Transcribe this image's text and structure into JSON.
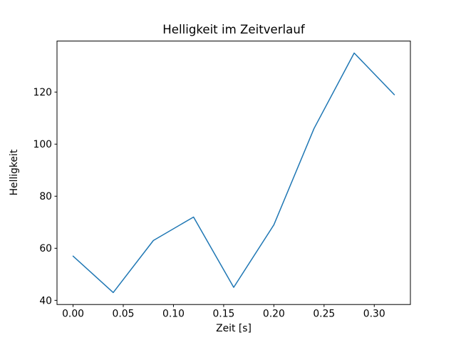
{
  "chart_data": {
    "type": "line",
    "title": "Helligkeit im Zeitverlauf",
    "xlabel": "Zeit [s]",
    "ylabel": "Helligkeit",
    "x": [
      0.0,
      0.04,
      0.08,
      0.12,
      0.16,
      0.2,
      0.24,
      0.28,
      0.32
    ],
    "y": [
      57,
      43,
      63,
      72,
      45,
      69,
      106,
      135,
      119
    ],
    "xlim": [
      -0.016,
      0.336
    ],
    "ylim": [
      38.4,
      139.6
    ],
    "xticks": [
      0.0,
      0.05,
      0.1,
      0.15,
      0.2,
      0.25,
      0.3
    ],
    "xtick_labels": [
      "0.00",
      "0.05",
      "0.10",
      "0.15",
      "0.20",
      "0.25",
      "0.30"
    ],
    "yticks": [
      40,
      60,
      80,
      100,
      120
    ],
    "ytick_labels": [
      "40",
      "60",
      "80",
      "100",
      "120"
    ],
    "line_color": "#1f77b4",
    "axis_color": "#000000",
    "grid": false,
    "legend_position": "none"
  }
}
